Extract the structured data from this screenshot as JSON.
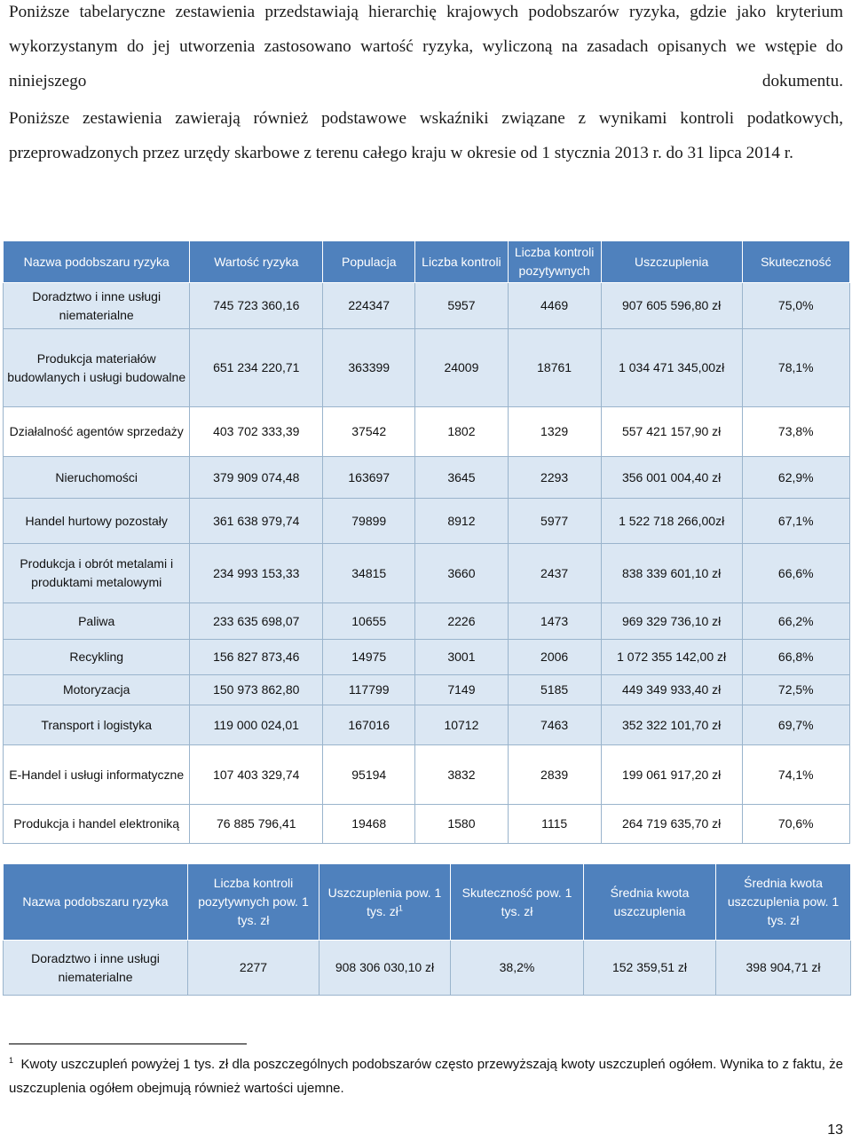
{
  "paragraphs": [
    "Poniższe tabelaryczne zestawienia przedstawiają hierarchię krajowych podobszarów ryzyka, gdzie jako kryterium wykorzystanym do jej utworzenia zastosowano wartość ryzyka, wyliczoną na zasadach opisanych we wstępie do niniejszego dokumentu.",
    "Poniższe zestawienia zawierają również podstawowe wskaźniki związane z wynikami kontroli podatkowych, przeprowadzonych przez urzędy skarbowe z terenu całego kraju w okresie od 1 stycznia 2013 r. do 31 lipca 2014 r."
  ],
  "table1": {
    "headers": [
      "Nazwa podobszaru ryzyka",
      "Wartość ryzyka",
      "Populacja",
      "Liczba kontroli",
      "Liczba kontroli pozytywnych",
      "Uszczuplenia",
      "Skuteczność"
    ],
    "rows": [
      [
        "Doradztwo i inne usługi niematerialne",
        "745 723 360,16",
        "224347",
        "5957",
        "4469",
        "907 605 596,80 zł",
        "75,0%"
      ],
      [
        "Produkcja materiałów budowlanych i usługi budowalne",
        "651 234 220,71",
        "363399",
        "24009",
        "18761",
        "1 034 471 345,00zł",
        "78,1%"
      ],
      [
        "Działalność agentów sprzedaży",
        "403 702 333,39",
        "37542",
        "1802",
        "1329",
        "557 421 157,90 zł",
        "73,8%"
      ],
      [
        "Nieruchomości",
        "379 909 074,48",
        "163697",
        "3645",
        "2293",
        "356 001 004,40 zł",
        "62,9%"
      ],
      [
        "Handel hurtowy pozostały",
        "361 638 979,74",
        "79899",
        "8912",
        "5977",
        "1 522 718 266,00zł",
        "67,1%"
      ],
      [
        "Produkcja i obrót metalami i produktami metalowymi",
        "234 993 153,33",
        "34815",
        "3660",
        "2437",
        "838 339 601,10 zł",
        "66,6%"
      ],
      [
        "Paliwa",
        "233 635 698,07",
        "10655",
        "2226",
        "1473",
        "969 329 736,10 zł",
        "66,2%"
      ],
      [
        "Recykling",
        "156 827 873,46",
        "14975",
        "3001",
        "2006",
        "1 072 355 142,00 zł",
        "66,8%"
      ],
      [
        "Motoryzacja",
        "150 973 862,80",
        "117799",
        "7149",
        "5185",
        "449 349 933,40 zł",
        "72,5%"
      ],
      [
        "Transport i logistyka",
        "119 000 024,01",
        "167016",
        "10712",
        "7463",
        "352 322 101,70 zł",
        "69,7%"
      ],
      [
        "E-Handel i usługi informatyczne",
        "107 403 329,74",
        "95194",
        "3832",
        "2839",
        "199 061 917,20 zł",
        "74,1%"
      ],
      [
        "Produkcja i handel elektroniką",
        "76 885 796,41",
        "19468",
        "1580",
        "1115",
        "264 719 635,70 zł",
        "70,6%"
      ]
    ]
  },
  "table2": {
    "headers": [
      "Nazwa podobszaru ryzyka",
      "Liczba kontroli pozytywnych pow. 1 tys. zł",
      "Uszczuplenia pow. 1 tys. zł",
      "Skuteczność pow. 1 tys. zł",
      "Średnia kwota uszczuplenia",
      "Średnia kwota uszczuplenia pow. 1 tys. zł"
    ],
    "header_footnote_mark": "1",
    "row": [
      "Doradztwo i inne usługi niematerialne",
      "2277",
      "908 306 030,10 zł",
      "38,2%",
      "152 359,51 zł",
      "398 904,71 zł"
    ]
  },
  "footnote": {
    "mark": "1",
    "text": "Kwoty uszczupleń powyżej 1 tys. zł dla poszczególnych podobszarów często przewyższają kwoty uszczupleń ogółem. Wynika to z faktu, że uszczuplenia ogółem obejmują również wartości ujemne."
  },
  "page_number": "13"
}
